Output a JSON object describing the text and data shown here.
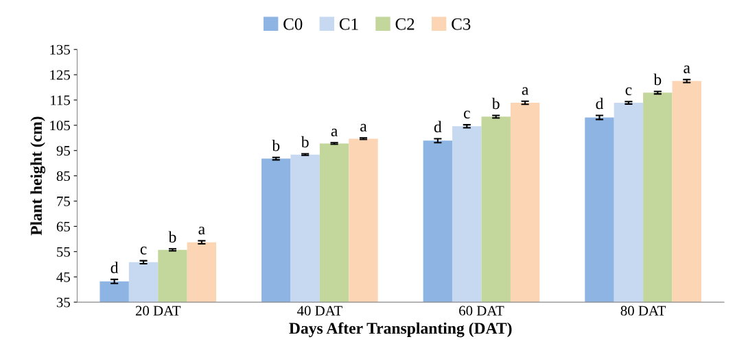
{
  "chart_data": {
    "type": "bar",
    "xlabel": "Days After Transplanting (DAT)",
    "ylabel": "Plant height (cm)",
    "categories": [
      "20 DAT",
      "40 DAT",
      "60 DAT",
      "80 DAT"
    ],
    "series": [
      {
        "name": "C0",
        "color": "#8eb4e3",
        "values": [
          43.2,
          91.8,
          98.9,
          108.1
        ],
        "errors": [
          0.8,
          0.5,
          0.8,
          0.8
        ],
        "value_labels": [
          "d",
          "b",
          "d",
          "d"
        ]
      },
      {
        "name": "C1",
        "color": "#c6d9f1",
        "values": [
          50.8,
          93.4,
          104.6,
          113.9
        ],
        "errors": [
          0.6,
          0.3,
          0.6,
          0.5
        ],
        "value_labels": [
          "c",
          "b",
          "c",
          "c"
        ]
      },
      {
        "name": "C2",
        "color": "#c3d69b",
        "values": [
          55.7,
          97.8,
          108.4,
          117.9
        ],
        "errors": [
          0.4,
          0.3,
          0.5,
          0.5
        ],
        "value_labels": [
          "b",
          "a",
          "b",
          "b"
        ]
      },
      {
        "name": "C3",
        "color": "#fcd5b5",
        "values": [
          58.7,
          99.7,
          113.9,
          122.5
        ],
        "errors": [
          0.6,
          0.3,
          0.6,
          0.6
        ],
        "value_labels": [
          "a",
          "a",
          "a",
          "a"
        ]
      }
    ],
    "ylim": [
      35,
      135
    ],
    "yticks": [
      35,
      45,
      55,
      65,
      75,
      85,
      95,
      105,
      115,
      125,
      135
    ],
    "grid": false,
    "legend": "top"
  }
}
